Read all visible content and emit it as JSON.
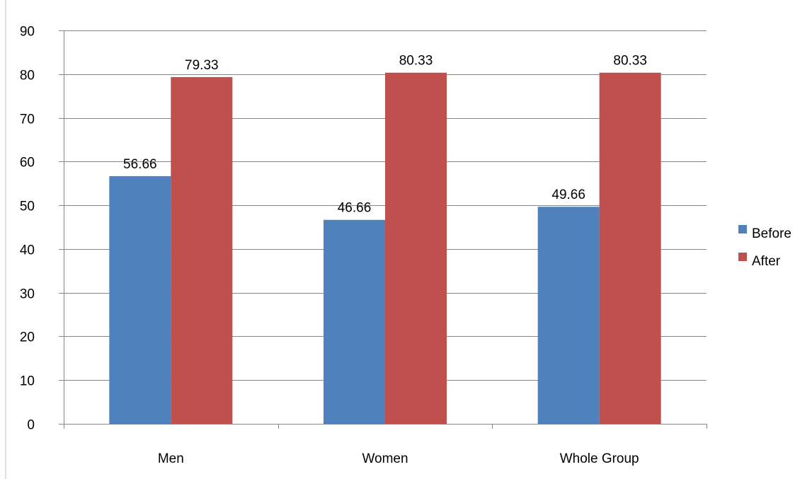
{
  "chart_data": {
    "type": "bar",
    "title": "",
    "xlabel": "",
    "ylabel": "",
    "categories": [
      "Men",
      "Women",
      "Whole Group"
    ],
    "series": [
      {
        "name": "Before",
        "values": [
          56.66,
          46.66,
          49.66
        ],
        "color": "#4F81BD"
      },
      {
        "name": "After",
        "values": [
          79.33,
          80.33,
          80.33
        ],
        "color": "#C0504D"
      }
    ],
    "data_labels": [
      [
        "56.66",
        "46.66",
        "49.66"
      ],
      [
        "79.33",
        "80.33",
        "80.33"
      ]
    ],
    "ylim": [
      0,
      90
    ],
    "yticks": [
      0,
      10,
      20,
      30,
      40,
      50,
      60,
      70,
      80,
      90
    ],
    "ytick_labels": [
      "0",
      "10",
      "20",
      "30",
      "40",
      "50",
      "60",
      "70",
      "80",
      "90"
    ],
    "grid": true,
    "legend_position": "right"
  }
}
